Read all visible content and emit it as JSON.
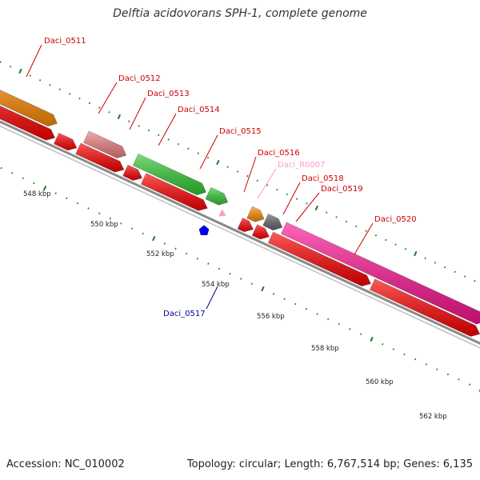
{
  "title": "Delftia acidovorans SPH-1, complete genome",
  "footer": {
    "accession": "Accession: NC_010002",
    "topology": "Topology: circular; Length: 6,767,514 bp; Genes: 6,135"
  },
  "colors": {
    "backbone": "#777777",
    "tick": "#1f7a1f",
    "cds_default": "#ff0000",
    "label_red": "#cc0000",
    "label_pink": "#ff99cc",
    "label_blue": "#000099"
  },
  "scale_labels": [
    "548 kbp",
    "550 kbp",
    "552 kbp",
    "554 kbp",
    "556 kbp",
    "558 kbp",
    "560 kbp",
    "562 kbp"
  ],
  "genes": [
    {
      "name": "Daci_0511",
      "color": "#ff8c00",
      "label_color": "#cc0000"
    },
    {
      "name": "Daci_0512",
      "color": "#ff0000",
      "label_color": "#cc0000"
    },
    {
      "name": "Daci_0513",
      "color": "#f08080",
      "label_color": "#cc0000"
    },
    {
      "name": "Daci_0514",
      "color": "#ff0000",
      "label_color": "#cc0000"
    },
    {
      "name": "Daci_0515",
      "color": "#33cc33",
      "label_color": "#cc0000"
    },
    {
      "name": "Daci_0516",
      "color": "#33cc33",
      "label_color": "#cc0000"
    },
    {
      "name": "Daci_R0007",
      "color": "#ff99cc",
      "label_color": "#ff99cc"
    },
    {
      "name": "Daci_0517",
      "color": "#0000ff",
      "label_color": "#000099"
    },
    {
      "name": "Daci_0518",
      "color": "#ff8c00",
      "label_color": "#cc0000"
    },
    {
      "name": "Daci_0519",
      "color": "#666666",
      "label_color": "#cc0000"
    },
    {
      "name": "Daci_0520",
      "color": "#ff1493",
      "label_color": "#cc0000"
    }
  ]
}
